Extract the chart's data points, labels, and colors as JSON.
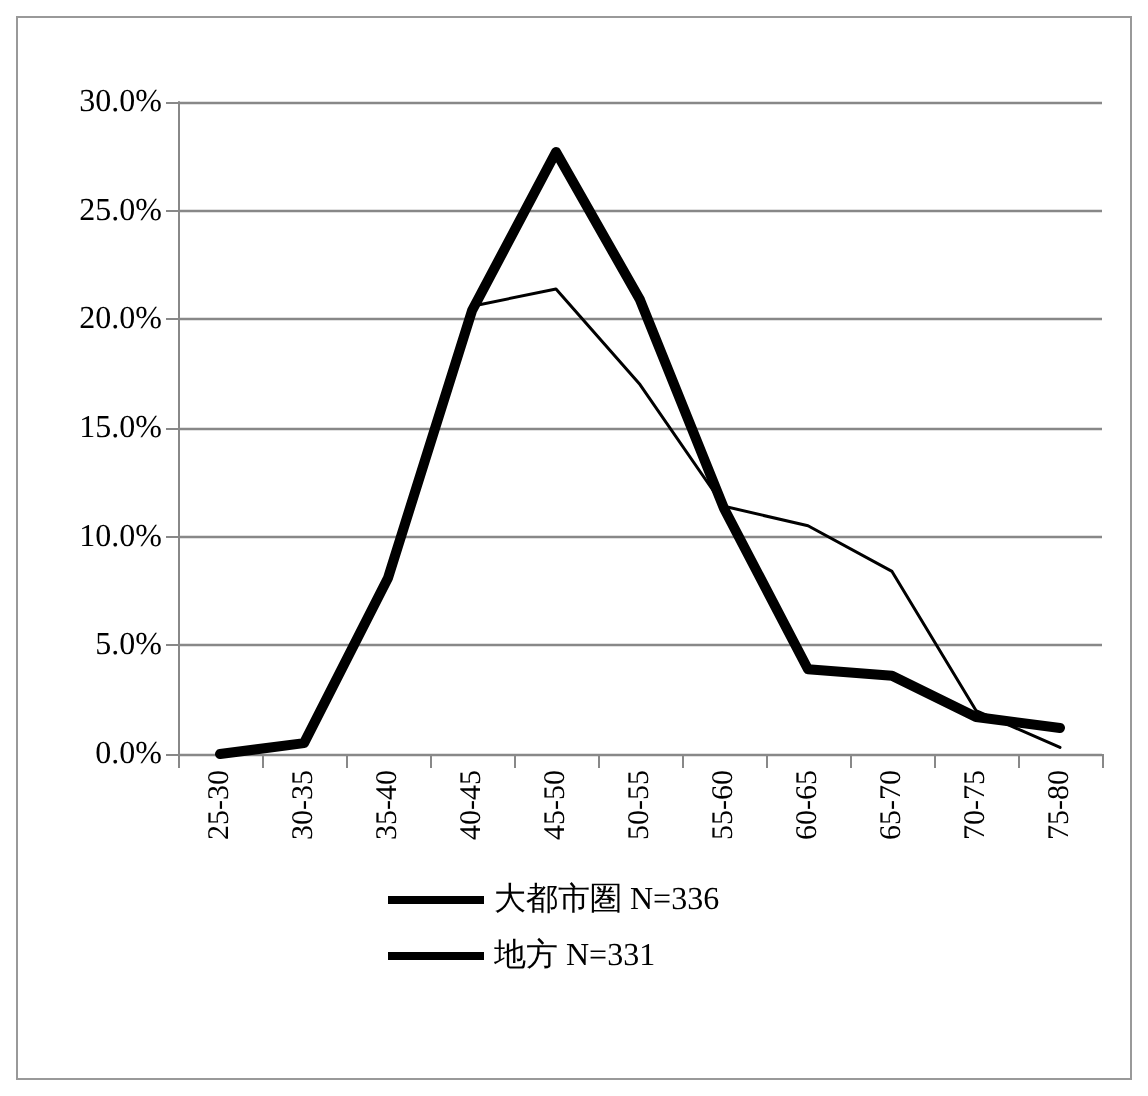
{
  "chart_data": {
    "type": "line",
    "categories": [
      "25-30",
      "30-35",
      "35-40",
      "40-45",
      "45-50",
      "50-55",
      "55-60",
      "60-65",
      "65-70",
      "70-75",
      "75-80"
    ],
    "series": [
      {
        "name": "大都市圏 N=336",
        "color": "#000000",
        "values": [
          0,
          0.5,
          8.1,
          20.4,
          27.7,
          20.9,
          11.3,
          3.9,
          3.6,
          1.7,
          1.2
        ]
      },
      {
        "name": "地方 N=331",
        "color": "#000000",
        "values": [
          0,
          0.5,
          8.0,
          20.6,
          21.4,
          17.0,
          11.4,
          10.5,
          8.4,
          2.0,
          0.3
        ]
      }
    ],
    "ylim": [
      0,
      30
    ],
    "yticks": [
      {
        "value": 0,
        "label": "0.0%"
      },
      {
        "value": 5,
        "label": "5.0%"
      },
      {
        "value": 10,
        "label": "10.0%"
      },
      {
        "value": 15,
        "label": "15.0%"
      },
      {
        "value": 20,
        "label": "20.0%"
      },
      {
        "value": 25,
        "label": "25.0%"
      },
      {
        "value": 30,
        "label": "30.0%"
      }
    ],
    "grid": "y",
    "legend": "bottom",
    "marker": "none",
    "line_style": "solid"
  }
}
